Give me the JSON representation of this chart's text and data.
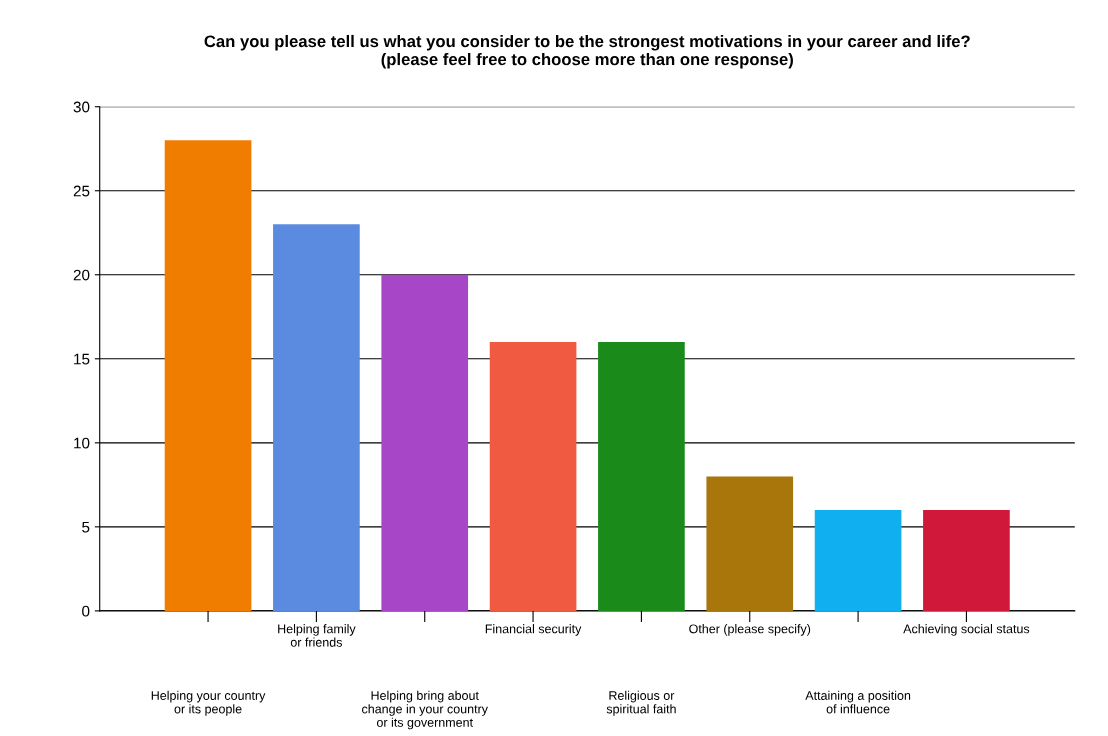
{
  "chart_data": {
    "type": "bar",
    "title": "Can you please tell us what you consider to be the strongest motivations in your career and life?\n(please feel free to choose more than one response)",
    "categories": [
      "Helping your country\nor its people",
      "Helping family\nor friends",
      "Helping bring about\nchange in your country\nor its government",
      "Financial security",
      "Religious or\nspiritual faith",
      "Other (please specify)",
      "Attaining a position\nof influence",
      "Achieving social status"
    ],
    "values": [
      28,
      23,
      20,
      16,
      16,
      8,
      6,
      6
    ],
    "colors": [
      "#f07d00",
      "#5b8be0",
      "#a846c8",
      "#f05a40",
      "#1a8a1a",
      "#a8760a",
      "#10b0f0",
      "#d0183a"
    ],
    "ylim": [
      0,
      30
    ],
    "yticks": [
      0,
      5,
      10,
      15,
      20,
      25,
      30
    ],
    "grid": "y"
  }
}
